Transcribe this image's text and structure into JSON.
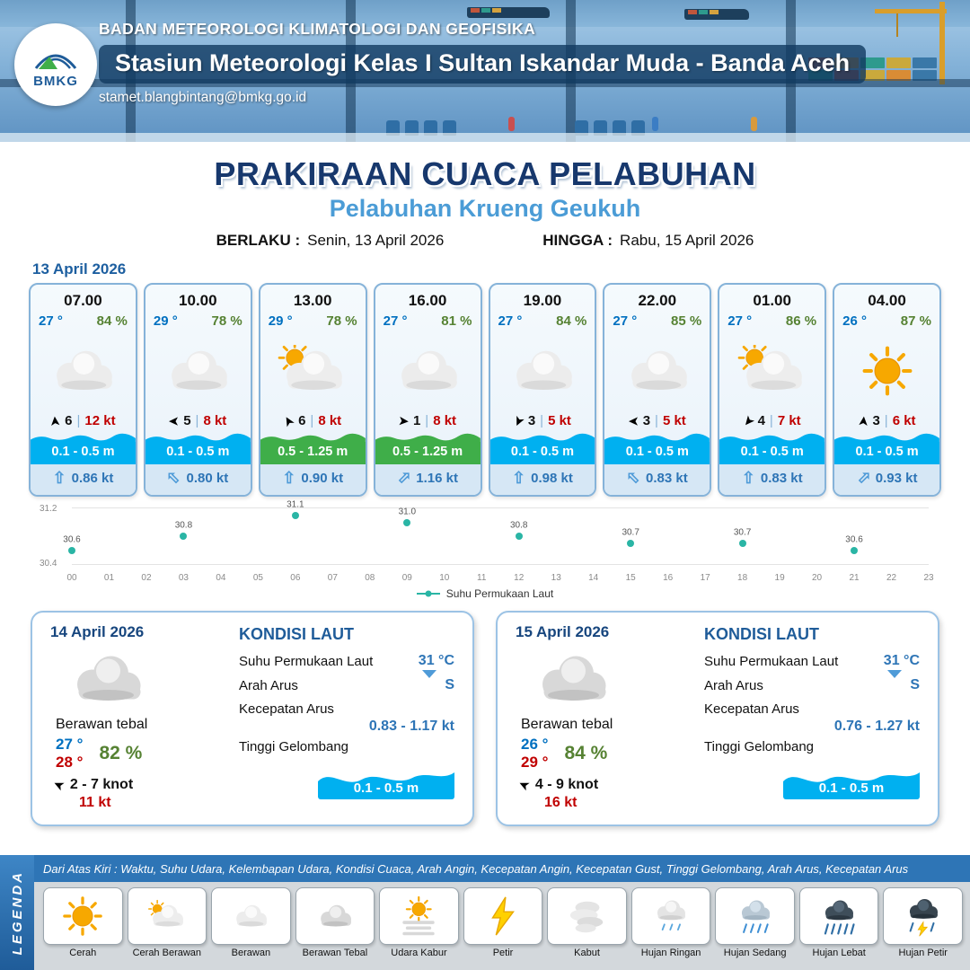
{
  "header": {
    "agency": "BADAN METEOROLOGI KLIMATOLOGI DAN GEOFISIKA",
    "station": "Stasiun Meteorologi Kelas I Sultan Iskandar Muda - Banda Aceh",
    "email": "stamet.blangbintang@bmkg.go.id",
    "logo": "BMKG"
  },
  "title": {
    "main": "PRAKIRAAN CUACA PELABUHAN",
    "subtitle": "Pelabuhan Krueng Geukuh",
    "berlaku_label": "BERLAKU :",
    "berlaku_value": "Senin, 13 April 2026",
    "hingga_label": "HINGGA :",
    "hingga_value": "Rabu, 15 April 2026"
  },
  "forecast_date": "13 April 2026",
  "icons": {
    "wind_arrow": "➤",
    "current_arrow": "⇧",
    "separator": "|"
  },
  "colors": {
    "wave_low": "#00b0f0",
    "wave_mid": "#3fae49",
    "accent_blue": "#2e75b6"
  },
  "cards": [
    {
      "time": "07.00",
      "temp": "27 °",
      "humidity": "84 %",
      "icon": "cloudy",
      "wind_dir_deg": -95,
      "wind": "6",
      "gust": "12 kt",
      "wave": "0.1 - 0.5 m",
      "wave_color": "#00b0f0",
      "current_dir_deg": 0,
      "current": "0.86 kt"
    },
    {
      "time": "10.00",
      "temp": "29 °",
      "humidity": "78 %",
      "icon": "cloudy",
      "wind_dir_deg": 180,
      "wind": "5",
      "gust": "8 kt",
      "wave": "0.1 - 0.5 m",
      "wave_color": "#00b0f0",
      "current_dir_deg": -45,
      "current": "0.80 kt"
    },
    {
      "time": "13.00",
      "temp": "29 °",
      "humidity": "78 %",
      "icon": "sun-cloud",
      "wind_dir_deg": -120,
      "wind": "6",
      "gust": "8 kt",
      "wave": "0.5 - 1.25 m",
      "wave_color": "#3fae49",
      "current_dir_deg": 0,
      "current": "0.90 kt"
    },
    {
      "time": "16.00",
      "temp": "27 °",
      "humidity": "81 %",
      "icon": "cloudy",
      "wind_dir_deg": 5,
      "wind": "1",
      "gust": "8 kt",
      "wave": "0.5 - 1.25 m",
      "wave_color": "#3fae49",
      "current_dir_deg": 45,
      "current": "1.16 kt"
    },
    {
      "time": "19.00",
      "temp": "27 °",
      "humidity": "84 %",
      "icon": "cloudy",
      "wind_dir_deg": 115,
      "wind": "3",
      "gust": "5 kt",
      "wave": "0.1 - 0.5 m",
      "wave_color": "#00b0f0",
      "current_dir_deg": 0,
      "current": "0.98 kt"
    },
    {
      "time": "22.00",
      "temp": "27 °",
      "humidity": "85 %",
      "icon": "cloudy",
      "wind_dir_deg": 180,
      "wind": "3",
      "gust": "5 kt",
      "wave": "0.1 - 0.5 m",
      "wave_color": "#00b0f0",
      "current_dir_deg": -45,
      "current": "0.83 kt"
    },
    {
      "time": "01.00",
      "temp": "27 °",
      "humidity": "86 %",
      "icon": "sun-cloud",
      "wind_dir_deg": 130,
      "wind": "4",
      "gust": "7 kt",
      "wave": "0.1 - 0.5 m",
      "wave_color": "#00b0f0",
      "current_dir_deg": 0,
      "current": "0.83 kt"
    },
    {
      "time": "04.00",
      "temp": "26 °",
      "humidity": "87 %",
      "icon": "sunny",
      "wind_dir_deg": -85,
      "wind": "3",
      "gust": "6 kt",
      "wave": "0.1 - 0.5 m",
      "wave_color": "#00b0f0",
      "current_dir_deg": 45,
      "current": "0.93 kt"
    }
  ],
  "chart_data": {
    "type": "scatter",
    "x": [
      0,
      3,
      6,
      9,
      12,
      15,
      18,
      21
    ],
    "values": [
      30.6,
      30.8,
      31.1,
      31.0,
      30.8,
      30.7,
      30.7,
      30.6
    ],
    "x_ticks": [
      "00",
      "01",
      "02",
      "03",
      "04",
      "05",
      "06",
      "07",
      "08",
      "09",
      "10",
      "11",
      "12",
      "13",
      "14",
      "15",
      "16",
      "17",
      "18",
      "19",
      "20",
      "21",
      "22",
      "23"
    ],
    "ylim": [
      30.4,
      31.2
    ],
    "legend_label": "Suhu Permukaan Laut",
    "point_color": "#2ab5a5",
    "legend_position": "bottom",
    "grid": false
  },
  "sea_labels": {
    "kondisi": "KONDISI LAUT",
    "sst": "Suhu Permukaan Laut",
    "arah": "Arah Arus",
    "kecepatan": "Kecepatan Arus",
    "tinggi": "Tinggi Gelombang"
  },
  "day_cards": [
    {
      "date": "14 April 2026",
      "icon": "cloudy-thick",
      "condition": "Berawan tebal",
      "temp_min": "27 °",
      "temp_max": "28 °",
      "humidity": "82 %",
      "wind_dir_deg": 205,
      "wind": "2 - 7 knot",
      "gust": "11 kt",
      "sst": "31 °C",
      "arah_arus": "S",
      "kecepatan_arus": "0.83 - 1.17 kt",
      "gelombang": "0.1 - 0.5 m"
    },
    {
      "date": "15 April 2026",
      "icon": "cloudy-thick",
      "condition": "Berawan tebal",
      "temp_min": "26 °",
      "temp_max": "29 °",
      "humidity": "84 %",
      "wind_dir_deg": 205,
      "wind": "4 - 9 knot",
      "gust": "16 kt",
      "sst": "31 °C",
      "arah_arus": "S",
      "kecepatan_arus": "0.76 - 1.27 kt",
      "gelombang": "0.1 - 0.5 m"
    }
  ],
  "legend": {
    "ribbon": "LEGENDA",
    "note": "Dari Atas Kiri : Waktu, Suhu Udara, Kelembapan Udara, Kondisi Cuaca, Arah Angin, Kecepatan Angin, Kecepatan Gust, Tinggi Gelombang, Arah Arus, Kecepatan Arus",
    "items": [
      {
        "label": "Cerah",
        "icon": "sunny"
      },
      {
        "label": "Cerah Berawan",
        "icon": "sun-cloud"
      },
      {
        "label": "Berawan",
        "icon": "cloudy"
      },
      {
        "label": "Berawan Tebal",
        "icon": "cloudy-thick"
      },
      {
        "label": "Udara Kabur",
        "icon": "hazy"
      },
      {
        "label": "Petir",
        "icon": "thunder"
      },
      {
        "label": "Kabut",
        "icon": "fog"
      },
      {
        "label": "Hujan Ringan",
        "icon": "rain-light"
      },
      {
        "label": "Hujan Sedang",
        "icon": "rain-medium"
      },
      {
        "label": "Hujan Lebat",
        "icon": "rain-heavy"
      },
      {
        "label": "Hujan Petir",
        "icon": "rain-thunder"
      }
    ]
  }
}
